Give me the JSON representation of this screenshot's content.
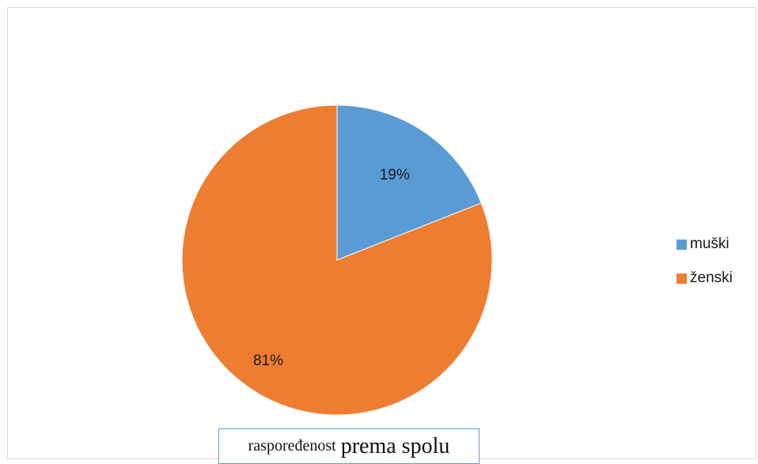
{
  "chart_data": {
    "type": "pie",
    "categories": [
      "muški",
      "ženski"
    ],
    "values": [
      19,
      81
    ],
    "data_labels": [
      "19%",
      "81%"
    ],
    "colors": [
      "#5b9bd5",
      "#ed7d31"
    ],
    "legend_position": "right"
  },
  "caption": {
    "part1": "raspoređenost",
    "part2": "prema spolu"
  }
}
